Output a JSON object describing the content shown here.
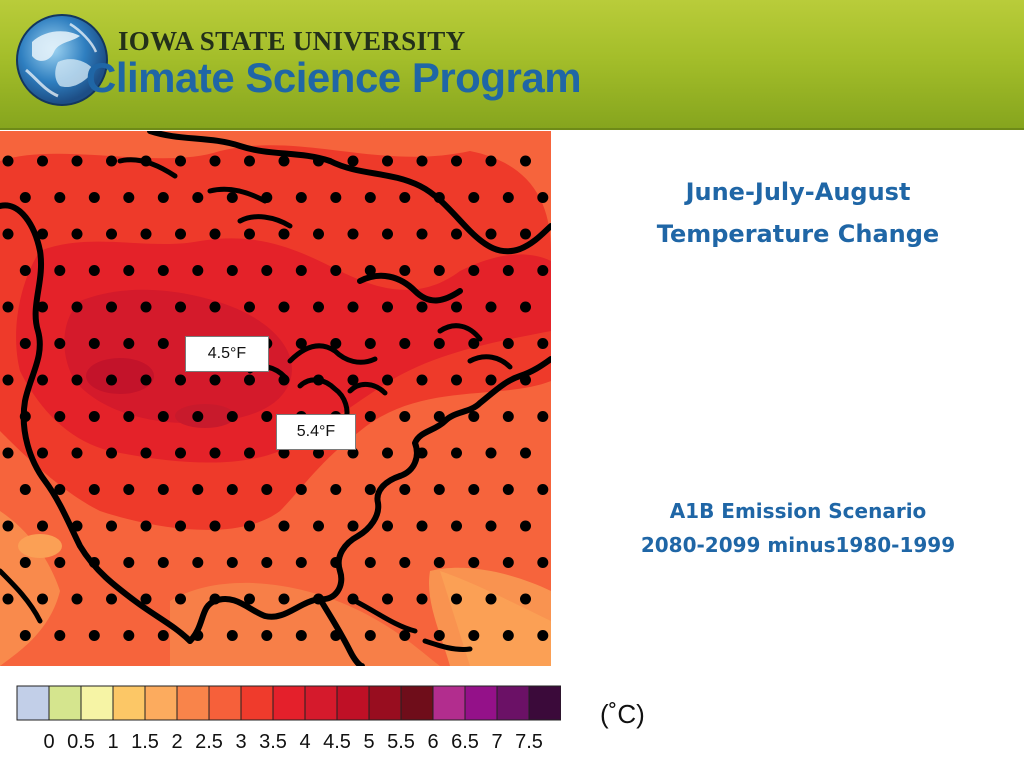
{
  "header": {
    "university": "IOWA STATE UNIVERSITY",
    "program": "Climate Science Program",
    "banner_color": "#a4be2a",
    "program_color": "#1f66a6"
  },
  "title": {
    "line1": "June-July-August",
    "line2": "Temperature Change"
  },
  "scenario": {
    "line1": "A1B Emission Scenario",
    "line2": "2080-2099 minus1980-1999"
  },
  "map": {
    "region": "North America",
    "callouts": [
      "4.5°F",
      "5.4°F"
    ],
    "stippling": true,
    "coastline_color": "#000000"
  },
  "colorbar": {
    "units": "(˚C)",
    "ticks": [
      "0",
      "0.5",
      "1",
      "1.5",
      "2",
      "2.5",
      "3",
      "3.5",
      "4",
      "4.5",
      "5",
      "5.5",
      "6",
      "6.5",
      "7",
      "7.5"
    ],
    "colors": [
      "#c2cfe8",
      "#d5e58e",
      "#f6f4a5",
      "#fcc766",
      "#fcab5e",
      "#f9844a",
      "#f6603a",
      "#ef3b2c",
      "#e4202b",
      "#d51a2c",
      "#bf1026",
      "#980d1f",
      "#6f0d1a",
      "#b22d8e",
      "#941189",
      "#6b1166",
      "#3b0a3a"
    ]
  }
}
